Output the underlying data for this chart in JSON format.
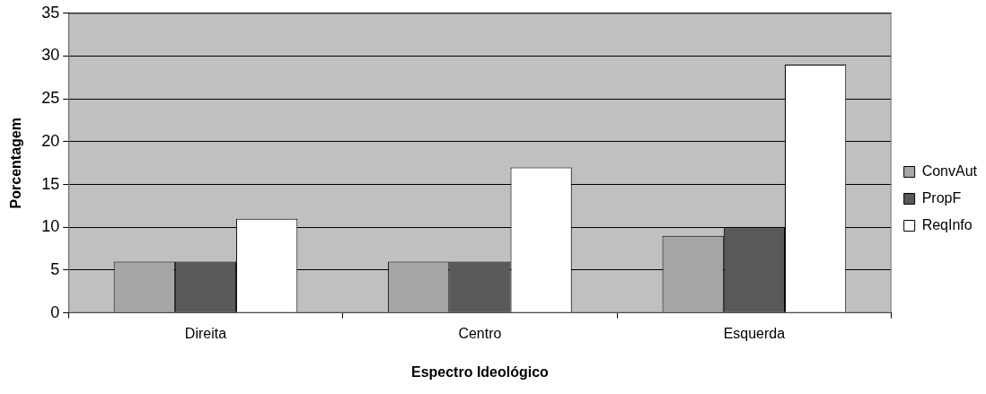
{
  "chart_data": {
    "type": "bar",
    "xlabel": "Espectro Ideológico",
    "ylabel": "Porcentagem",
    "categories": [
      "Direita",
      "Centro",
      "Esquerda"
    ],
    "series": [
      {
        "name": "ConvAut",
        "color": "#a6a6a6",
        "values": [
          6,
          6,
          9
        ]
      },
      {
        "name": "PropF",
        "color": "#595959",
        "values": [
          6,
          6,
          10
        ]
      },
      {
        "name": "ReqInfo",
        "color": "#ffffff",
        "values": [
          11,
          17,
          29
        ]
      }
    ],
    "ylim": [
      0,
      35
    ],
    "yticks": [
      0,
      5,
      10,
      15,
      20,
      25,
      30,
      35
    ],
    "grid": "y",
    "legend": "right"
  }
}
